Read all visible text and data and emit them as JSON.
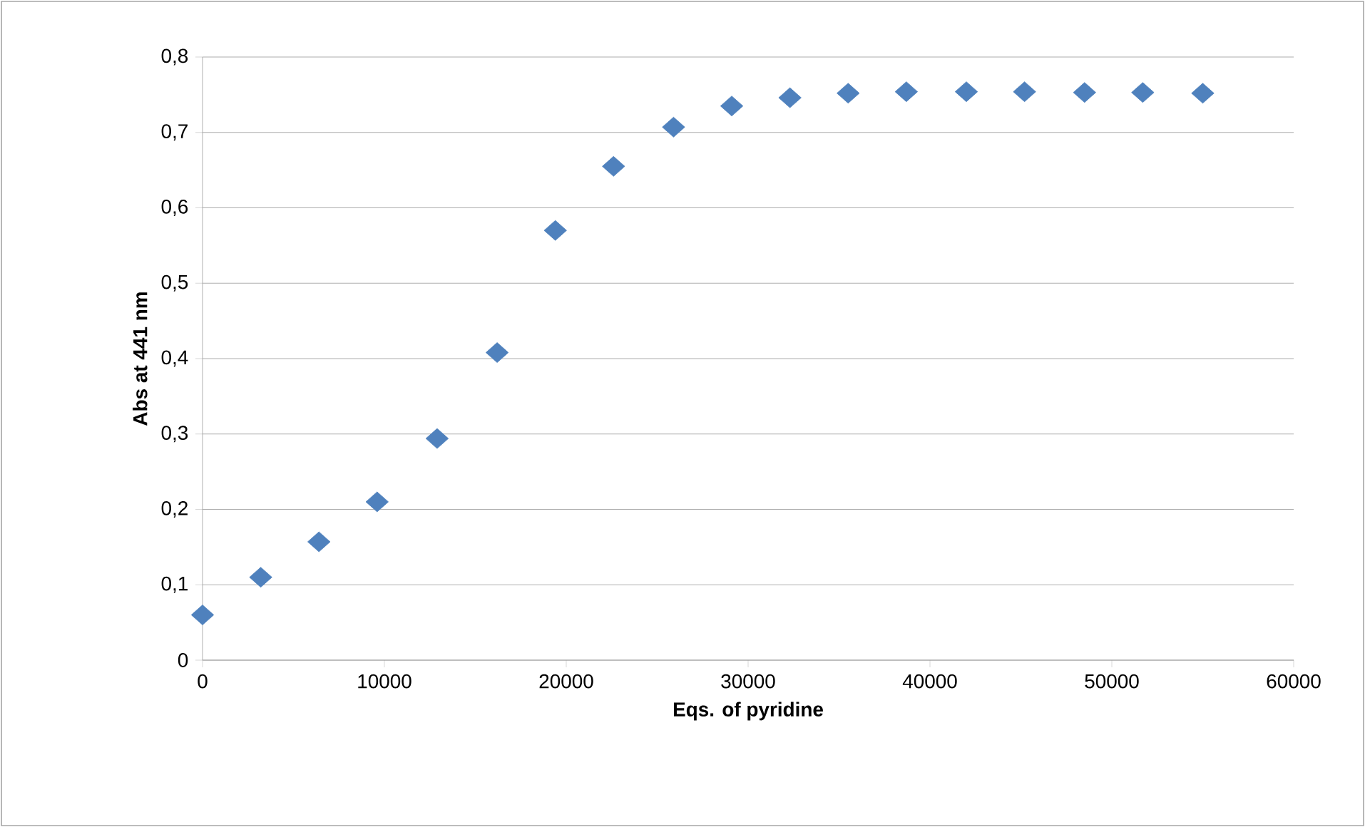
{
  "chart_data": {
    "type": "scatter",
    "xlabel": "Eqs. of pyridine",
    "ylabel": "Abs at 441 nm",
    "x": [
      0,
      3200,
      6400,
      9600,
      12900,
      16200,
      19400,
      22600,
      25900,
      29100,
      32300,
      35500,
      38700,
      42000,
      45200,
      48500,
      51700,
      55000
    ],
    "values": [
      0.06,
      0.11,
      0.157,
      0.21,
      0.294,
      0.408,
      0.57,
      0.655,
      0.707,
      0.735,
      0.746,
      0.752,
      0.754,
      0.754,
      0.754,
      0.753,
      0.753,
      0.752
    ],
    "color": "#4f81bd",
    "marker": "diamond",
    "grid": "y",
    "xlim": [
      0,
      60000
    ],
    "xticks": [
      0,
      10000,
      20000,
      30000,
      40000,
      50000,
      60000
    ],
    "ylim": [
      0,
      0.8
    ],
    "yticks": [
      0,
      {
        "value": 0.1,
        "label": "0,1"
      },
      {
        "value": 0.2,
        "label": "0,2"
      },
      {
        "value": 0.3,
        "label": "0,3"
      },
      {
        "value": 0.4,
        "label": "0,4"
      },
      {
        "value": 0.5,
        "label": "0,5"
      },
      {
        "value": 0.6,
        "label": "0,6"
      },
      {
        "value": 0.7,
        "label": "0,7"
      },
      {
        "value": 0.8,
        "label": "0,8"
      }
    ]
  }
}
